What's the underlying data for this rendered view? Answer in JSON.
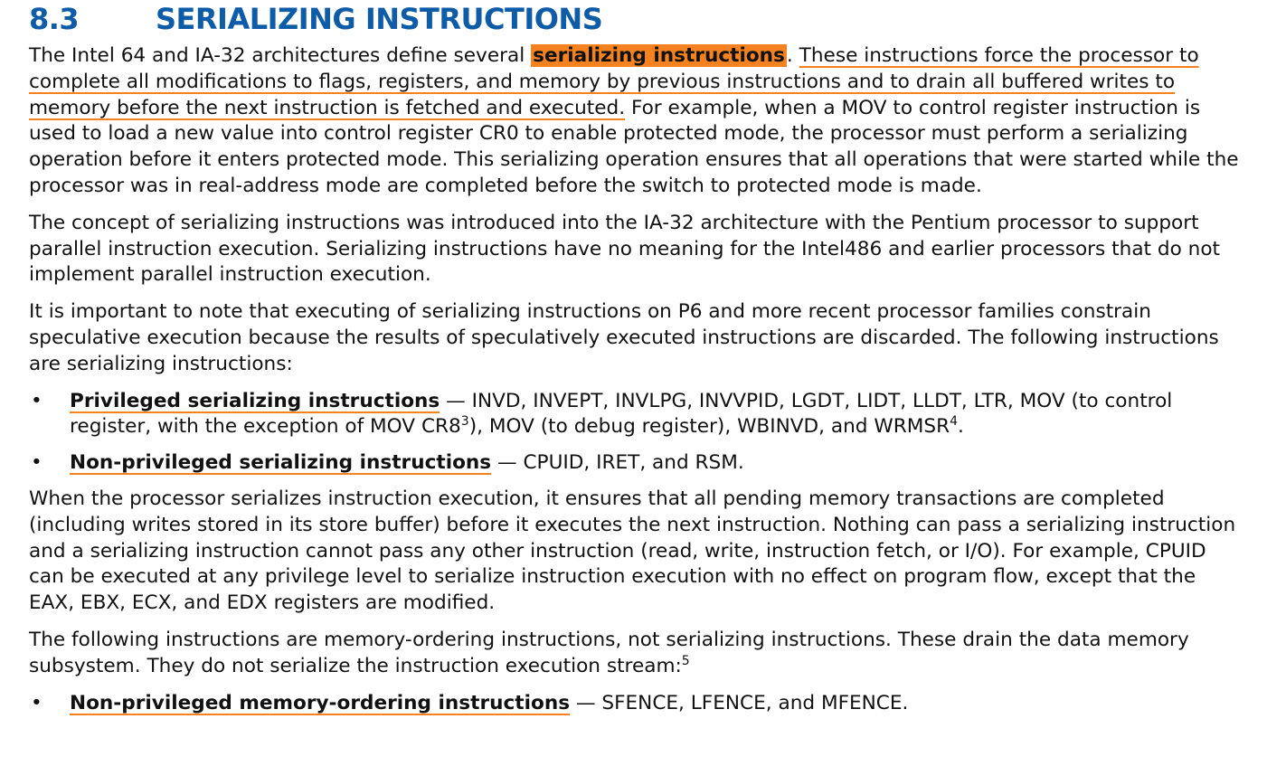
{
  "section": {
    "number": "8.3",
    "title": "SERIALIZING INSTRUCTIONS"
  },
  "colors": {
    "heading": "#0e5ca8",
    "highlight": "#f58220",
    "underline": "#f58220"
  },
  "para1": {
    "pre": "The Intel 64 and IA-32 architectures define several ",
    "highlight": "serializing instructions",
    "mid": ". ",
    "underlined": "These instructions force the processor to complete all modifications to flags, registers, and memory by previous instructions and to drain all buffered writes to memory before the next instruction is fetched and executed.",
    "post": " For example, when a MOV to control register instruction is used to load a new value into control register CR0 to enable protected mode, the processor must perform a serializing operation before it enters protected mode. This serializing operation ensures that all operations that were started while the processor was in real-address mode are completed before the switch to protected mode is made."
  },
  "para2": "The concept of serializing instructions was introduced into the IA-32 architecture with the Pentium processor to support parallel instruction execution. Serializing instructions have no meaning for the Intel486 and earlier processors that do not implement parallel instruction execution.",
  "para3": "It is important to note that executing of serializing instructions on P6 and more recent processor families constrain speculative execution because the results of speculatively executed instructions are discarded. The following instructions are serializing instructions:",
  "bullets1": [
    {
      "term": "Privileged serializing instructions",
      "text_a": " — INVD, INVEPT, INVLPG, INVVPID, LGDT, LIDT, LLDT, LTR, MOV (to control register, with the exception of MOV CR8",
      "sup_a": "3",
      "text_b": "), MOV (to debug register), WBINVD, and WRMSR",
      "sup_b": "4",
      "text_c": "."
    },
    {
      "term": "Non-privileged serializing instructions",
      "text_a": " — CPUID, IRET, and RSM."
    }
  ],
  "para4": "When the processor serializes instruction execution, it ensures that all pending memory transactions are completed (including writes stored in its store buffer) before it executes the next instruction. Nothing can pass a serializing instruction and a serializing instruction cannot pass any other instruction (read, write, instruction fetch, or I/O). For example, CPUID can be executed at any privilege level to serialize instruction execution with no effect on program flow, except that the EAX, EBX, ECX, and EDX registers are modified.",
  "para5": {
    "text": "The following instructions are memory-ordering instructions, not serializing instructions. These drain the data memory subsystem. They do not serialize the instruction execution stream:",
    "sup": "5"
  },
  "bullets2": [
    {
      "term": "Non-privileged memory-ordering instructions",
      "text_a": " — SFENCE, LFENCE, and MFENCE."
    }
  ],
  "bullet_glyph": "•"
}
